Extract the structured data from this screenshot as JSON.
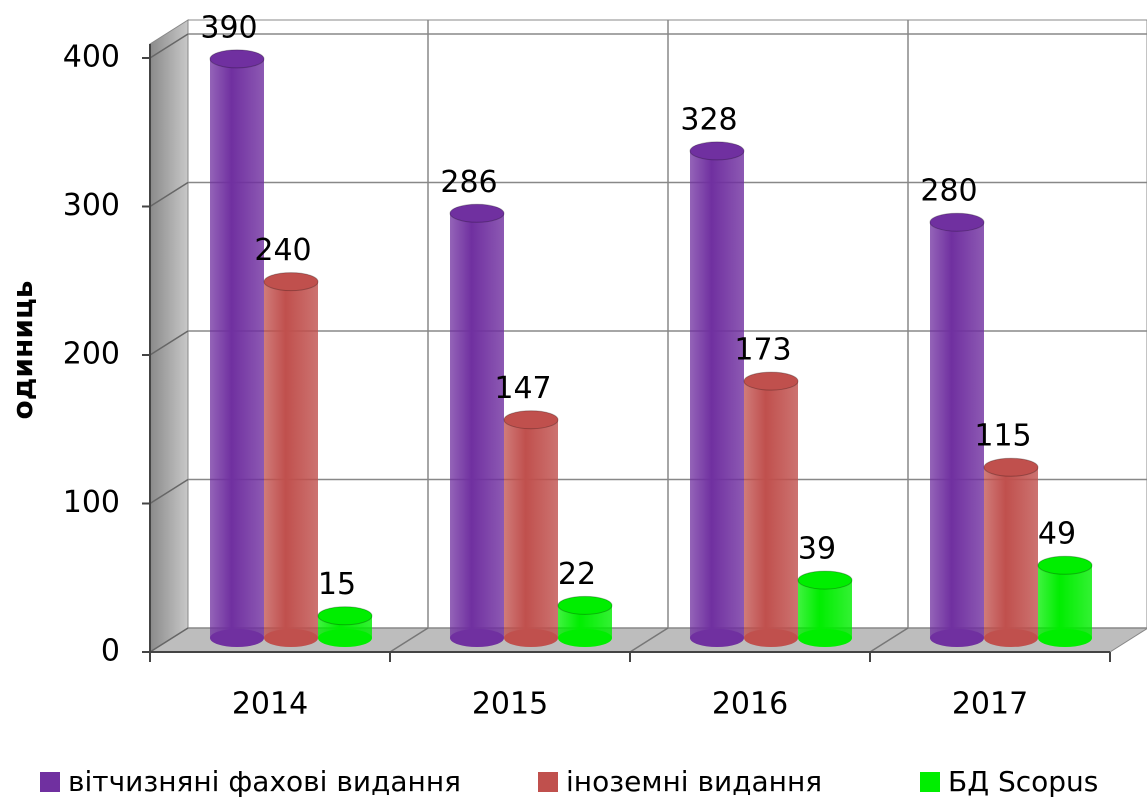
{
  "chart_data": {
    "type": "bar",
    "y_label": "одиниць",
    "categories": [
      "2014",
      "2015",
      "2016",
      "2017"
    ],
    "series": [
      {
        "name": "вітчизняні фахові видання",
        "color": "#7030a0",
        "values": [
          390,
          286,
          328,
          280
        ]
      },
      {
        "name": "іноземні видання",
        "color": "#c0504d",
        "values": [
          240,
          147,
          173,
          115
        ]
      },
      {
        "name": "БД Scopus",
        "color": "#00ee00",
        "values": [
          15,
          22,
          39,
          49
        ]
      }
    ],
    "ylim": [
      0,
      400
    ],
    "yticks": [
      0,
      100,
      200,
      300,
      400
    ],
    "grid": true,
    "legend": "bottom"
  }
}
